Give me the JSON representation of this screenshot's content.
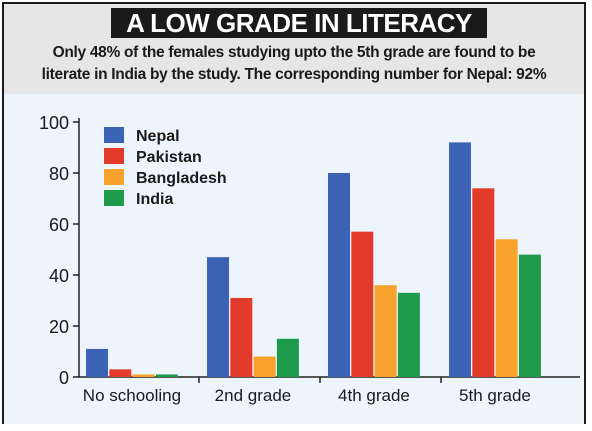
{
  "header": {
    "title": "A LOW GRADE IN LITERACY",
    "subtitle_line1": "Only 48% of the females studying upto the 5th grade are found to be",
    "subtitle_line2": "literate in India by the study. The corresponding number for Nepal: 92%"
  },
  "chart_data": {
    "type": "bar",
    "title": "A LOW GRADE IN LITERACY",
    "categories": [
      "No schooling",
      "2nd grade",
      "4th grade",
      "5th grade"
    ],
    "series": [
      {
        "name": "Nepal",
        "color": "#3b62b5",
        "values": [
          11,
          47,
          80,
          92
        ]
      },
      {
        "name": "Pakistan",
        "color": "#e23b2b",
        "values": [
          3,
          31,
          57,
          74
        ]
      },
      {
        "name": "Bangladesh",
        "color": "#f6a22c",
        "values": [
          1,
          8,
          36,
          54
        ]
      },
      {
        "name": "India",
        "color": "#1e9a4b",
        "values": [
          1,
          15,
          33,
          48
        ]
      }
    ],
    "ylim": [
      0,
      100
    ],
    "yticks": [
      "0",
      "20",
      "40",
      "60",
      "80",
      "100"
    ],
    "grid": false,
    "legend": "top-left"
  }
}
